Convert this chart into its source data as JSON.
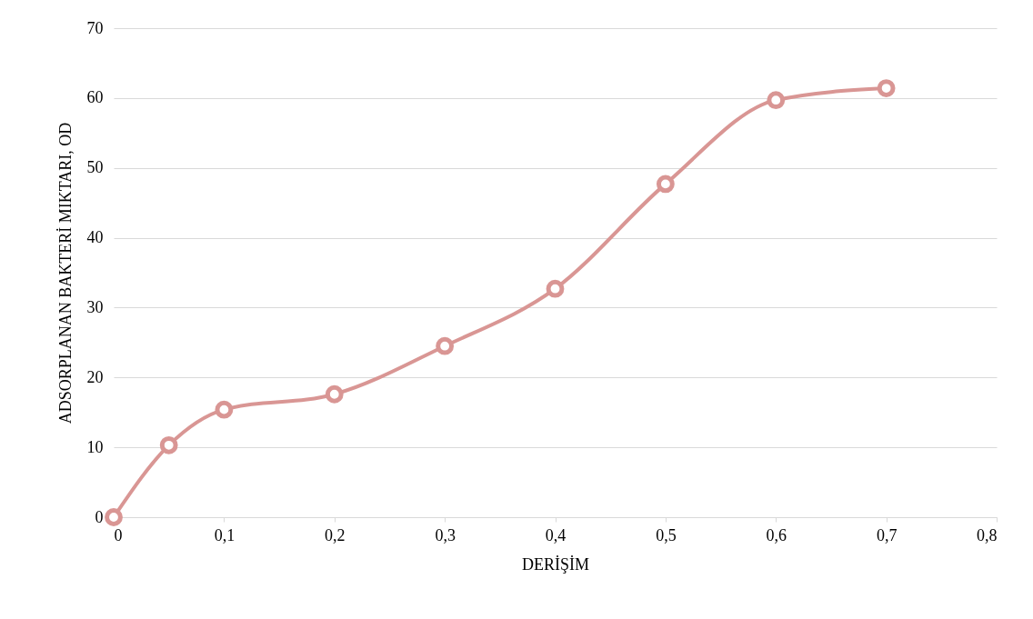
{
  "chart_data": {
    "type": "line",
    "xlabel": "DERİŞİM",
    "ylabel": "ADSORPLANAN BAKTERİ MIKTARI, OD",
    "x": [
      0,
      0.05,
      0.1,
      0.2,
      0.3,
      0.4,
      0.5,
      0.6,
      0.7
    ],
    "series": [
      {
        "color": "#d99694",
        "values": [
          0,
          10.3,
          15.4,
          17.6,
          24.5,
          32.7,
          47.7,
          59.7,
          61.4
        ]
      }
    ],
    "xlim": [
      0,
      0.8
    ],
    "xticks": [
      0,
      {
        "value": 0.1,
        "label": "0,1"
      },
      {
        "value": 0.2,
        "label": "0,2"
      },
      {
        "value": 0.3,
        "label": "0,3"
      },
      {
        "value": 0.4,
        "label": "0,4"
      },
      {
        "value": 0.5,
        "label": "0,5"
      },
      {
        "value": 0.6,
        "label": "0,6"
      },
      {
        "value": 0.7,
        "label": "0,7"
      },
      {
        "value": 0.8,
        "label": "0,8"
      }
    ],
    "ylim": [
      0,
      70
    ],
    "yticks": [
      0,
      10,
      20,
      30,
      40,
      50,
      60,
      70
    ],
    "grid": "y",
    "marker": "circle",
    "line_style": "solid"
  }
}
